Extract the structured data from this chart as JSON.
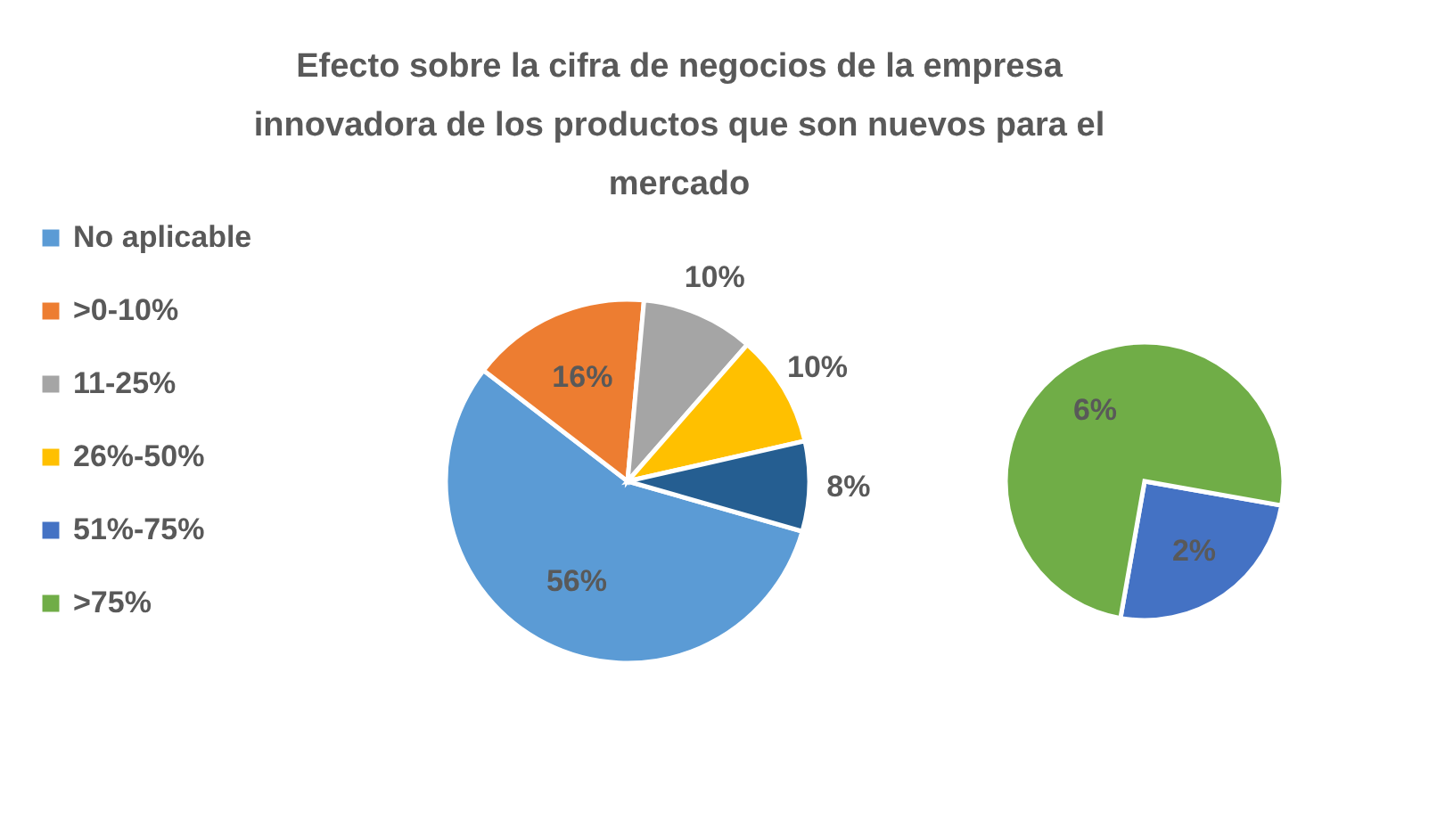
{
  "chart_data": [
    {
      "type": "pie",
      "title": "Efecto sobre la cifra de negocios de la empresa innovadora de los productos que son nuevos para el mercado",
      "categories": [
        "No aplicable",
        ">0-10%",
        "11-25%",
        "26%-50%",
        null
      ],
      "values": [
        56,
        16,
        10,
        10,
        8
      ],
      "colors": [
        "#5b9bd5",
        "#ed7d31",
        "#a5a5a5",
        "#ffc000",
        "#255e91"
      ],
      "value_labels": [
        "56%",
        "16%",
        "10%",
        "10%",
        "8%"
      ],
      "legend": "left"
    },
    {
      "type": "pie",
      "categories": [
        "51%-75%",
        ">75%"
      ],
      "values": [
        2,
        6
      ],
      "colors": [
        "#4472c4",
        "#70ad47"
      ],
      "value_labels": [
        "2%",
        "6%"
      ],
      "legend": "left"
    }
  ]
}
